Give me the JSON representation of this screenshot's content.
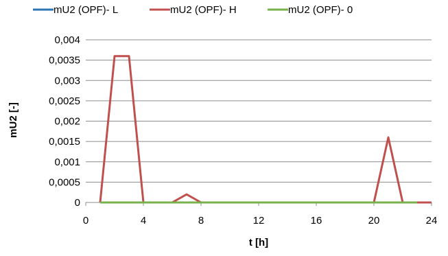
{
  "chart_data": {
    "type": "line",
    "title": "",
    "xlabel": "t [h]",
    "ylabel": "mU2 [-]",
    "xlim": [
      0,
      24
    ],
    "ylim": [
      0,
      0.004
    ],
    "x_ticks": [
      "0",
      "4",
      "8",
      "12",
      "16",
      "20",
      "24"
    ],
    "x_tick_values": [
      0,
      4,
      8,
      12,
      16,
      20,
      24
    ],
    "y_ticks": [
      "0",
      "0,0005",
      "0,001",
      "0,0015",
      "0,002",
      "0,0025",
      "0,003",
      "0,0035",
      "0,004"
    ],
    "y_tick_values": [
      0,
      0.0005,
      0.001,
      0.0015,
      0.002,
      0.0025,
      0.003,
      0.0035,
      0.004
    ],
    "grid": "horizontal",
    "legend_position": "top",
    "series": [
      {
        "name": "mU2 (OPF)- L",
        "color": "#2e75b6",
        "x": [
          1,
          2,
          3,
          4,
          5,
          6,
          7,
          8,
          9,
          10,
          11,
          12,
          13,
          14,
          15,
          16,
          17,
          18,
          19,
          20,
          21,
          22,
          23,
          24
        ],
        "values": [
          0,
          0,
          0,
          0,
          0,
          0,
          0,
          0,
          0,
          0,
          0,
          0,
          0,
          0,
          0,
          0,
          0,
          0,
          0,
          0,
          0,
          0,
          0,
          0
        ]
      },
      {
        "name": "mU2 (OPF)- H",
        "color": "#c0504d",
        "x": [
          1,
          2,
          3,
          4,
          5,
          6,
          7,
          8,
          9,
          10,
          11,
          12,
          13,
          14,
          15,
          16,
          17,
          18,
          19,
          20,
          21,
          22,
          23,
          24
        ],
        "values": [
          0,
          0.0036,
          0.0036,
          0,
          0,
          0,
          0.0002,
          0,
          0,
          0,
          0,
          0,
          0,
          0,
          0,
          0,
          0,
          0,
          0,
          0,
          0.0016,
          0,
          0,
          0
        ]
      },
      {
        "name": "mU2 (OPF)- 0",
        "color": "#77b24a",
        "x": [
          1,
          2,
          3,
          4,
          5,
          6,
          7,
          8,
          9,
          10,
          11,
          12,
          13,
          14,
          15,
          16,
          17,
          18,
          19,
          20,
          21,
          22,
          23
        ],
        "values": [
          0,
          0,
          0,
          0,
          0,
          0,
          0,
          0,
          0,
          0,
          0,
          0,
          0,
          0,
          0,
          0,
          0,
          0,
          0,
          0,
          0,
          0,
          0
        ]
      }
    ]
  }
}
